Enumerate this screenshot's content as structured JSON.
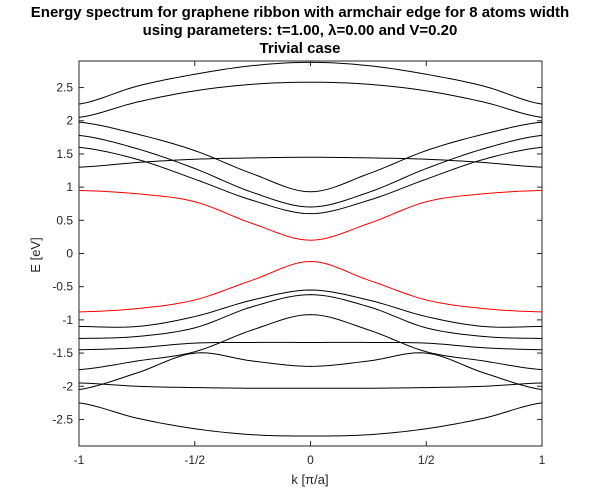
{
  "title": {
    "line1": "Energy spectrum for graphene ribbon with armchair edge for 8 atoms width",
    "line2": "using parameters: t=1.00, λ=0.00 and V=0.20",
    "line3": "Trivial case"
  },
  "chart_data": {
    "type": "line",
    "xlabel": "k [π/a]",
    "ylabel": "E [eV]",
    "xlim": [
      -1,
      1
    ],
    "ylim": [
      -2.9,
      2.9
    ],
    "xticks": [
      -1,
      -0.5,
      0,
      0.5,
      1
    ],
    "xtick_labels": [
      "-1",
      "-1/2",
      "0",
      "1/2",
      "1"
    ],
    "yticks": [
      2.5,
      2,
      1.5,
      1,
      0.5,
      0,
      -0.5,
      -1,
      -1.5,
      -2,
      -2.5
    ],
    "ytick_labels": [
      "2.5",
      "2",
      "1.5",
      "1",
      "0.5",
      "0",
      "-0.5",
      "-1",
      "-1.5",
      "-2",
      "-2.5"
    ],
    "grid": false,
    "colors": {
      "bands": "#000000",
      "gap_bands": "#ff0000"
    },
    "x": [
      -1,
      -0.75,
      -0.5,
      -0.25,
      0,
      0.25,
      0.5,
      0.75,
      1
    ],
    "series": [
      {
        "values": [
          2.25,
          2.52,
          2.7,
          2.83,
          2.88,
          2.83,
          2.7,
          2.52,
          2.25
        ],
        "color": "#000000"
      },
      {
        "values": [
          2.05,
          2.28,
          2.45,
          2.55,
          2.58,
          2.55,
          2.45,
          2.28,
          2.05
        ],
        "color": "#000000"
      },
      {
        "values": [
          1.98,
          1.8,
          1.55,
          1.2,
          0.93,
          1.2,
          1.55,
          1.8,
          1.98
        ],
        "color": "#000000"
      },
      {
        "values": [
          1.78,
          1.58,
          1.28,
          0.92,
          0.7,
          0.92,
          1.28,
          1.58,
          1.78
        ],
        "color": "#000000"
      },
      {
        "values": [
          1.6,
          1.42,
          1.12,
          0.8,
          0.6,
          0.8,
          1.12,
          1.42,
          1.6
        ],
        "color": "#000000"
      },
      {
        "values": [
          1.3,
          1.37,
          1.42,
          1.44,
          1.45,
          1.44,
          1.42,
          1.37,
          1.3
        ],
        "color": "#000000"
      },
      {
        "values": [
          0.95,
          0.9,
          0.78,
          0.45,
          0.2,
          0.45,
          0.78,
          0.9,
          0.95
        ],
        "color": "#ff0000"
      },
      {
        "values": [
          -0.88,
          -0.83,
          -0.7,
          -0.4,
          -0.12,
          -0.4,
          -0.7,
          -0.83,
          -0.88
        ],
        "color": "#ff0000"
      },
      {
        "values": [
          -1.1,
          -1.1,
          -0.95,
          -0.7,
          -0.55,
          -0.7,
          -0.95,
          -1.1,
          -1.1
        ],
        "color": "#000000"
      },
      {
        "values": [
          -1.28,
          -1.25,
          -1.12,
          -0.8,
          -0.62,
          -0.8,
          -1.12,
          -1.25,
          -1.28
        ],
        "color": "#000000"
      },
      {
        "values": [
          -1.45,
          -1.42,
          -1.35,
          -1.34,
          -1.34,
          -1.34,
          -1.35,
          -1.42,
          -1.45
        ],
        "color": "#000000"
      },
      {
        "values": [
          -1.75,
          -1.62,
          -1.48,
          -1.15,
          -0.92,
          -1.15,
          -1.48,
          -1.62,
          -1.75
        ],
        "color": "#000000"
      },
      {
        "values": [
          -2.05,
          -1.8,
          -1.5,
          -1.62,
          -1.7,
          -1.62,
          -1.5,
          -1.8,
          -2.05
        ],
        "color": "#000000"
      },
      {
        "values": [
          -1.95,
          -2.0,
          -2.02,
          -2.03,
          -2.03,
          -2.03,
          -2.02,
          -2.0,
          -1.95
        ],
        "color": "#000000"
      },
      {
        "values": [
          -2.25,
          -2.48,
          -2.64,
          -2.73,
          -2.75,
          -2.73,
          -2.64,
          -2.48,
          -2.25
        ],
        "color": "#000000"
      }
    ]
  }
}
